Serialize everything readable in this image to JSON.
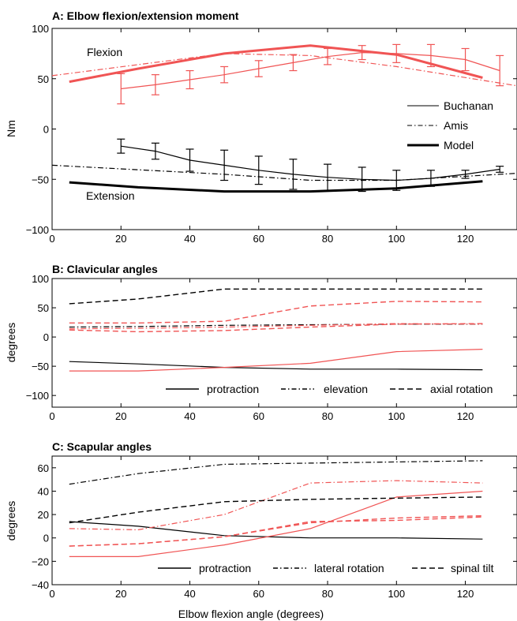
{
  "figure": {
    "xlabel": "Elbow flexion angle (degrees)"
  },
  "colors": {
    "red": "#f05454",
    "black": "#000000"
  },
  "chart_data": [
    {
      "type": "line",
      "title": "A: Elbow flexion/extension moment",
      "ylabel": "Nm",
      "xlim": [
        0,
        135
      ],
      "ylim": [
        -100,
        100
      ],
      "xticks": [
        "0",
        "20",
        "40",
        "60",
        "80",
        "100",
        "120"
      ],
      "yticks": [
        "100",
        "50",
        "0",
        "−50",
        "−100"
      ],
      "annotations": {
        "flexion": "Flexion",
        "extension": "Extension"
      },
      "legend": {
        "placement": "right",
        "entries": [
          "Buchanan",
          "Amis",
          "Model"
        ]
      },
      "series": [
        {
          "name": "Buchanan",
          "group": "Flexion",
          "color": "red",
          "style": "solid",
          "x": [
            20,
            30,
            40,
            50,
            60,
            70,
            80,
            90,
            100,
            110,
            120,
            130
          ],
          "y": [
            40,
            44,
            49,
            54,
            60,
            66,
            72,
            76,
            75,
            73,
            69,
            58
          ],
          "err": [
            15,
            10,
            9,
            8,
            8,
            8,
            8,
            7,
            9,
            11,
            11,
            15
          ]
        },
        {
          "name": "Amis",
          "group": "Flexion",
          "color": "red",
          "style": "dashdot",
          "x": [
            0,
            50,
            75,
            100,
            135
          ],
          "y": [
            53,
            75,
            73,
            62,
            43
          ]
        },
        {
          "name": "Model",
          "group": "Flexion",
          "color": "red",
          "style": "thick",
          "x": [
            5,
            25,
            50,
            75,
            100,
            125
          ],
          "y": [
            47,
            60,
            75,
            83,
            74,
            51
          ]
        },
        {
          "name": "Buchanan",
          "group": "Extension",
          "color": "black",
          "style": "solid",
          "x": [
            20,
            30,
            40,
            50,
            60,
            70,
            80,
            90,
            100,
            110,
            120,
            130
          ],
          "y": [
            -17,
            -22,
            -31,
            -36,
            -41,
            -45,
            -48,
            -50,
            -51,
            -49,
            -45,
            -40
          ],
          "err": [
            7,
            8,
            11,
            15,
            14,
            15,
            13,
            12,
            10,
            8,
            4,
            3
          ]
        },
        {
          "name": "Amis",
          "group": "Extension",
          "color": "black",
          "style": "dashdot",
          "x": [
            0,
            50,
            75,
            100,
            135
          ],
          "y": [
            -36,
            -45,
            -51,
            -51,
            -44
          ]
        },
        {
          "name": "Model",
          "group": "Extension",
          "color": "black",
          "style": "thick",
          "x": [
            5,
            25,
            50,
            75,
            100,
            125
          ],
          "y": [
            -53,
            -58,
            -62,
            -62,
            -59,
            -52
          ]
        }
      ]
    },
    {
      "type": "line",
      "title": "B: Clavicular angles",
      "ylabel": "degrees",
      "xlim": [
        0,
        135
      ],
      "ylim": [
        -120,
        100
      ],
      "xticks": [
        "0",
        "20",
        "40",
        "60",
        "80",
        "100",
        "120"
      ],
      "yticks": [
        "100",
        "50",
        "0",
        "−50",
        "−100"
      ],
      "legend": {
        "placement": "bottom",
        "entries": [
          "protraction",
          "elevation",
          "axial rotation"
        ]
      },
      "series": [
        {
          "name": "protraction",
          "color": "black",
          "style": "solid",
          "x": [
            5,
            25,
            50,
            75,
            100,
            125
          ],
          "y": [
            -42,
            -46,
            -52,
            -55,
            -55,
            -56
          ]
        },
        {
          "color": "red",
          "style": "solid",
          "x": [
            5,
            25,
            50,
            75,
            100,
            125
          ],
          "y": [
            -58,
            -58,
            -52,
            -45,
            -25,
            -21
          ]
        },
        {
          "name": "elevation",
          "color": "black",
          "style": "dashdot",
          "x": [
            5,
            25,
            50,
            75,
            100,
            125
          ],
          "y": [
            17,
            18,
            20,
            21,
            22,
            22
          ]
        },
        {
          "color": "red",
          "style": "dashdot",
          "x": [
            5,
            25,
            50,
            75,
            100,
            125
          ],
          "y": [
            14,
            15,
            17,
            20,
            23,
            22
          ]
        },
        {
          "name": "axial rotation",
          "color": "black",
          "style": "dashed",
          "x": [
            5,
            25,
            50,
            75,
            100,
            125
          ],
          "y": [
            57,
            65,
            82,
            82,
            82,
            82
          ]
        },
        {
          "color": "red",
          "style": "dashed",
          "x": [
            5,
            25,
            50,
            75,
            100,
            125
          ],
          "y": [
            24,
            24,
            27,
            53,
            61,
            60
          ]
        },
        {
          "color": "red",
          "style": "dashed",
          "x": [
            5,
            25,
            50,
            75,
            100,
            125
          ],
          "y": [
            12,
            9,
            11,
            17,
            22,
            23
          ]
        }
      ]
    },
    {
      "type": "line",
      "title": "C: Scapular angles",
      "ylabel": "degrees",
      "xlim": [
        0,
        135
      ],
      "ylim": [
        -40,
        70
      ],
      "xticks": [
        "0",
        "20",
        "40",
        "60",
        "80",
        "100",
        "120"
      ],
      "yticks": [
        "60",
        "40",
        "20",
        "0",
        "−20",
        "−40"
      ],
      "legend": {
        "placement": "bottom",
        "entries": [
          "protraction",
          "lateral rotation",
          "spinal tilt"
        ]
      },
      "series": [
        {
          "name": "protraction",
          "color": "black",
          "style": "solid",
          "x": [
            5,
            25,
            50,
            75,
            100,
            125
          ],
          "y": [
            14,
            10,
            2,
            0,
            0,
            -1
          ]
        },
        {
          "color": "red",
          "style": "solid",
          "x": [
            5,
            25,
            50,
            75,
            100,
            125
          ],
          "y": [
            -16,
            -16,
            -6,
            8,
            35,
            40
          ]
        },
        {
          "name": "lateral rotation",
          "color": "black",
          "style": "dashdot",
          "x": [
            5,
            25,
            50,
            75,
            100,
            125
          ],
          "y": [
            46,
            55,
            63,
            64,
            65,
            66
          ]
        },
        {
          "color": "red",
          "style": "dashdot",
          "x": [
            5,
            25,
            50,
            75,
            100,
            125
          ],
          "y": [
            8,
            7,
            20,
            47,
            49,
            47
          ]
        },
        {
          "name": "spinal tilt",
          "color": "black",
          "style": "dashed",
          "x": [
            5,
            25,
            50,
            75,
            100,
            125
          ],
          "y": [
            13,
            22,
            31,
            33,
            34,
            35
          ]
        },
        {
          "color": "red",
          "style": "dashed",
          "x": [
            5,
            25,
            50,
            75,
            100,
            125
          ],
          "y": [
            -7,
            -5,
            1,
            13,
            17,
            19
          ]
        },
        {
          "color": "red",
          "style": "dashed",
          "x": [
            5,
            25,
            50,
            75,
            100,
            125
          ],
          "y": [
            -7,
            -5,
            1,
            14,
            15,
            18
          ]
        }
      ]
    }
  ]
}
